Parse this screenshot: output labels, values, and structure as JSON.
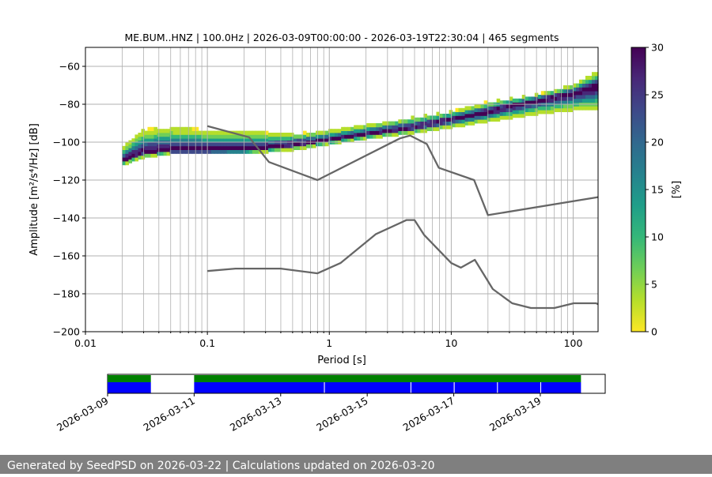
{
  "chart_data": [
    {
      "type": "heatmap",
      "title": "ME.BUM..HNZ | 100.0Hz | 2026-03-09T00:00:00 - 2026-03-19T22:30:04 | 465 segments",
      "xlabel": "Period [s]",
      "ylabel": "Amplitude [m²/s⁴/Hz] [dB]",
      "xscale": "log",
      "xlim": [
        0.01,
        160
      ],
      "ylim": [
        -200,
        -50
      ],
      "xticks": [
        {
          "value": 0.01,
          "label": "0.01"
        },
        {
          "value": 0.1,
          "label": "0.1"
        },
        {
          "value": 1,
          "label": "1"
        },
        {
          "value": 10,
          "label": "10"
        },
        {
          "value": 100,
          "label": "100"
        }
      ],
      "yticks": [
        {
          "value": -60,
          "label": "−60"
        },
        {
          "value": -80,
          "label": "−80"
        },
        {
          "value": -100,
          "label": "−100"
        },
        {
          "value": -120,
          "label": "−120"
        },
        {
          "value": -140,
          "label": "−140"
        },
        {
          "value": -160,
          "label": "−160"
        },
        {
          "value": -180,
          "label": "−180"
        },
        {
          "value": -200,
          "label": "−200"
        }
      ],
      "grid": true,
      "period_range": [
        0.02,
        160
      ],
      "mode_curve": {
        "period": [
          0.02,
          0.025,
          0.03,
          0.05,
          0.1,
          0.2,
          0.3,
          0.5,
          1,
          2,
          3,
          5,
          7,
          10,
          20,
          30,
          50,
          100,
          160
        ],
        "db": [
          -110,
          -107,
          -105,
          -104.5,
          -104.5,
          -104,
          -103,
          -101,
          -99,
          -96,
          -94,
          -92,
          -90,
          -88,
          -84,
          -81,
          -78,
          -74,
          -70
        ]
      },
      "upper_edge_curve": {
        "period": [
          0.02,
          0.03,
          0.05,
          0.1,
          0.2,
          0.5,
          1,
          2,
          5,
          10,
          20,
          50,
          100,
          160
        ],
        "db": [
          -103,
          -94,
          -93,
          -94,
          -95,
          -96,
          -94,
          -91,
          -87,
          -84,
          -79,
          -75,
          -70,
          -63
        ]
      },
      "lower_edge_curve": {
        "period": [
          0.02,
          0.03,
          0.05,
          0.1,
          0.2,
          0.5,
          1,
          2,
          5,
          10,
          20,
          50,
          100,
          160
        ],
        "db": [
          -112,
          -108,
          -106,
          -106,
          -106,
          -104,
          -101,
          -98,
          -95,
          -92,
          -89,
          -85,
          -83,
          -83
        ]
      },
      "reference_curves": [
        {
          "name": "NHNM",
          "period": [
            0.1,
            0.22,
            0.32,
            0.8,
            3.8,
            4.6,
            6.3,
            7.9,
            15.4,
            20,
            160
          ],
          "db": [
            -91.5,
            -97.4,
            -110.5,
            -120,
            -98,
            -96.5,
            -101,
            -113.5,
            -120,
            -138.5,
            -129
          ]
        },
        {
          "name": "NLNM",
          "period": [
            0.1,
            0.17,
            0.4,
            0.8,
            1.24,
            2.4,
            4.3,
            5,
            6,
            10,
            12,
            15.6,
            21.9,
            31.6,
            45,
            70,
            101,
            154,
            160
          ],
          "db": [
            -168,
            -166.7,
            -166.7,
            -169.2,
            -163.7,
            -148.6,
            -141.1,
            -141.1,
            -149,
            -163.8,
            -166.2,
            -162.1,
            -177.5,
            -185,
            -187.5,
            -187.5,
            -185,
            -185,
            -185.5
          ]
        }
      ],
      "colorbar": {
        "label": "[%]",
        "range": [
          0,
          30
        ],
        "ticks": [
          "0",
          "5",
          "10",
          "15",
          "20",
          "25",
          "30"
        ],
        "colormap": "viridis_r"
      },
      "colors": {
        "viridis": [
          "#440154",
          "#482878",
          "#3e4989",
          "#31688e",
          "#26828e",
          "#1f9e89",
          "#35b779",
          "#6ece58",
          "#b5de2b",
          "#fde725"
        ],
        "reference_line": "#666666",
        "grid": "#b0b0b0"
      }
    },
    {
      "type": "timeline",
      "xlim_days": [
        0,
        11.5
      ],
      "date_ticks": [
        {
          "day": 0,
          "label": "2026-03-09"
        },
        {
          "day": 2,
          "label": "2026-03-11"
        },
        {
          "day": 4,
          "label": "2026-03-13"
        },
        {
          "day": 6,
          "label": "2026-03-15"
        },
        {
          "day": 8,
          "label": "2026-03-17"
        },
        {
          "day": 10,
          "label": "2026-03-19"
        }
      ],
      "data_available": [
        [
          0,
          1.0
        ],
        [
          2.0,
          10.94
        ]
      ],
      "psd_segments": [
        [
          0,
          1.0
        ],
        [
          2.0,
          5.0
        ],
        [
          5.02,
          7.0
        ],
        [
          7.02,
          8.0
        ],
        [
          8.02,
          9.0
        ],
        [
          9.02,
          10.0
        ],
        [
          10.02,
          10.94
        ]
      ],
      "colors": {
        "available": "#008000",
        "segments": "#0000ff"
      }
    }
  ],
  "footer": {
    "text": "Generated by SeedPSD on 2026-03-22 | Calculations updated on 2026-03-20"
  }
}
